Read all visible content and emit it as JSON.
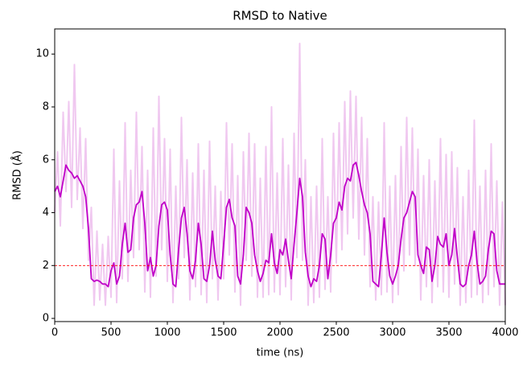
{
  "chart_data": {
    "type": "line",
    "title": "RMSD to Native",
    "xlabel": "time (ns)",
    "ylabel": "RMSD (Å)",
    "x": [
      0,
      25,
      50,
      75,
      100,
      125,
      150,
      175,
      200,
      225,
      250,
      275,
      300,
      325,
      350,
      375,
      400,
      425,
      450,
      475,
      500,
      525,
      550,
      575,
      600,
      625,
      650,
      675,
      700,
      725,
      750,
      775,
      800,
      825,
      850,
      875,
      900,
      925,
      950,
      975,
      1000,
      1025,
      1050,
      1075,
      1100,
      1125,
      1150,
      1175,
      1200,
      1225,
      1250,
      1275,
      1300,
      1325,
      1350,
      1375,
      1400,
      1425,
      1450,
      1475,
      1500,
      1525,
      1550,
      1575,
      1600,
      1625,
      1650,
      1675,
      1700,
      1725,
      1750,
      1775,
      1800,
      1825,
      1850,
      1875,
      1900,
      1925,
      1950,
      1975,
      2000,
      2025,
      2050,
      2075,
      2100,
      2125,
      2150,
      2175,
      2200,
      2225,
      2250,
      2275,
      2300,
      2325,
      2350,
      2375,
      2400,
      2425,
      2450,
      2475,
      2500,
      2525,
      2550,
      2575,
      2600,
      2625,
      2650,
      2675,
      2700,
      2725,
      2750,
      2775,
      2800,
      2825,
      2850,
      2875,
      2900,
      2925,
      2950,
      2975,
      3000,
      3025,
      3050,
      3075,
      3100,
      3125,
      3150,
      3175,
      3200,
      3225,
      3250,
      3275,
      3300,
      3325,
      3350,
      3375,
      3400,
      3425,
      3450,
      3475,
      3500,
      3525,
      3550,
      3575,
      3600,
      3625,
      3650,
      3675,
      3700,
      3725,
      3750,
      3775,
      3800,
      3825,
      3850,
      3875,
      3900,
      3925,
      3950,
      3975,
      4000
    ],
    "series": [
      {
        "color": "#f0c8f0",
        "width": 2,
        "values": [
          4.0,
          6.3,
          3.5,
          7.8,
          4.8,
          8.2,
          4.2,
          9.6,
          4.5,
          7.2,
          3.4,
          6.8,
          2.2,
          4.2,
          0.5,
          3.3,
          0.7,
          2.8,
          0.5,
          3.1,
          0.8,
          6.4,
          0.6,
          5.2,
          1.5,
          7.4,
          1.4,
          5.6,
          2.3,
          7.8,
          2.6,
          6.5,
          1.0,
          5.6,
          0.8,
          7.2,
          1.6,
          8.4,
          2.6,
          6.8,
          1.4,
          6.4,
          0.6,
          5.0,
          1.5,
          7.6,
          2.3,
          6.0,
          0.7,
          5.5,
          1.2,
          6.6,
          0.9,
          5.6,
          0.6,
          6.7,
          1.5,
          5.0,
          0.7,
          4.8,
          1.5,
          7.4,
          2.4,
          6.6,
          1.0,
          5.4,
          0.5,
          6.3,
          2.2,
          7.0,
          1.6,
          6.6,
          0.8,
          5.3,
          0.8,
          6.5,
          0.9,
          8.0,
          1.0,
          5.5,
          0.9,
          6.8,
          1.2,
          5.8,
          0.7,
          7.0,
          2.3,
          10.4,
          2.2,
          6.0,
          0.5,
          4.6,
          0.6,
          5.0,
          0.8,
          6.8,
          1.1,
          4.6,
          1.0,
          7.0,
          2.1,
          7.4,
          2.6,
          8.2,
          3.2,
          8.6,
          3.8,
          8.4,
          3.0,
          7.6,
          2.4,
          6.8,
          1.2,
          4.6,
          0.7,
          4.4,
          0.9,
          7.4,
          1.0,
          5.0,
          0.6,
          5.4,
          0.9,
          6.5,
          1.8,
          7.6,
          2.4,
          7.2,
          2.0,
          6.4,
          0.7,
          5.4,
          1.2,
          6.0,
          0.6,
          5.2,
          1.2,
          6.8,
          1.0,
          6.2,
          0.8,
          6.3,
          1.3,
          5.7,
          0.5,
          4.6,
          0.6,
          5.6,
          0.8,
          7.5,
          0.9,
          5.0,
          0.6,
          5.6,
          0.9,
          6.6,
          1.2,
          5.2,
          0.5,
          4.4,
          0.5
        ]
      },
      {
        "color": "#c000c8",
        "width": 1.8,
        "values": [
          4.8,
          5.0,
          4.6,
          5.2,
          5.8,
          5.6,
          5.5,
          5.3,
          5.4,
          5.2,
          5.0,
          4.6,
          3.4,
          1.5,
          1.4,
          1.45,
          1.4,
          1.3,
          1.3,
          1.2,
          1.8,
          2.1,
          1.3,
          1.6,
          2.8,
          3.6,
          2.5,
          2.6,
          3.8,
          4.3,
          4.4,
          4.8,
          3.6,
          1.8,
          2.3,
          1.6,
          2.0,
          3.5,
          4.3,
          4.4,
          4.1,
          2.4,
          1.3,
          1.2,
          2.6,
          3.8,
          4.2,
          3.2,
          1.8,
          1.5,
          2.2,
          3.6,
          2.8,
          1.5,
          1.4,
          2.0,
          3.3,
          2.2,
          1.6,
          1.5,
          2.8,
          4.2,
          4.5,
          3.8,
          3.5,
          1.6,
          1.3,
          2.4,
          4.2,
          4.0,
          3.6,
          2.4,
          1.8,
          1.4,
          1.7,
          2.2,
          2.1,
          3.2,
          2.1,
          1.7,
          2.6,
          2.4,
          3.0,
          2.2,
          1.5,
          2.8,
          4.0,
          5.3,
          4.6,
          2.5,
          1.6,
          1.2,
          1.5,
          1.4,
          2.0,
          3.2,
          3.0,
          1.5,
          2.4,
          3.6,
          3.8,
          4.4,
          4.1,
          5.0,
          5.3,
          5.2,
          5.8,
          5.9,
          5.4,
          4.8,
          4.3,
          4.0,
          3.2,
          1.4,
          1.3,
          1.2,
          2.4,
          3.8,
          2.5,
          1.6,
          1.3,
          1.6,
          2.0,
          3.0,
          3.8,
          4.0,
          4.4,
          4.8,
          4.6,
          2.4,
          2.0,
          1.7,
          2.7,
          2.6,
          1.4,
          2.0,
          3.1,
          2.8,
          2.7,
          3.2,
          2.0,
          2.4,
          3.4,
          2.3,
          1.3,
          1.2,
          1.3,
          2.0,
          2.4,
          3.3,
          2.1,
          1.3,
          1.4,
          1.6,
          2.6,
          3.3,
          3.2,
          1.8,
          1.3,
          1.3,
          1.3
        ]
      }
    ],
    "hline": {
      "value": 2,
      "color": "#ff0000",
      "dashed": true
    },
    "xlim": [
      0,
      4000
    ],
    "xticks": [
      0,
      500,
      1000,
      1500,
      2000,
      2500,
      3000,
      3500,
      4000
    ],
    "ylim": [
      -0.12,
      10.95
    ],
    "yticks": [
      0,
      2,
      4,
      6,
      8,
      10
    ],
    "grid": false
  }
}
